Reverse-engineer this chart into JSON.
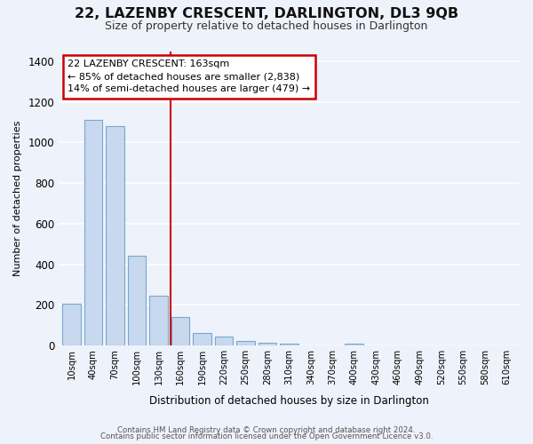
{
  "title": "22, LAZENBY CRESCENT, DARLINGTON, DL3 9QB",
  "subtitle": "Size of property relative to detached houses in Darlington",
  "xlabel": "Distribution of detached houses by size in Darlington",
  "ylabel": "Number of detached properties",
  "bar_color": "#c8d8ee",
  "bar_edge_color": "#7aa8cc",
  "bin_labels": [
    "10sqm",
    "40sqm",
    "70sqm",
    "100sqm",
    "130sqm",
    "160sqm",
    "190sqm",
    "220sqm",
    "250sqm",
    "280sqm",
    "310sqm",
    "340sqm",
    "370sqm",
    "400sqm",
    "430sqm",
    "460sqm",
    "490sqm",
    "520sqm",
    "550sqm",
    "580sqm",
    "610sqm"
  ],
  "bar_heights": [
    205,
    1110,
    1080,
    440,
    245,
    140,
    60,
    45,
    22,
    15,
    10,
    0,
    0,
    10,
    0,
    0,
    0,
    0,
    0,
    0,
    0
  ],
  "ylim": [
    0,
    1450
  ],
  "yticks": [
    0,
    200,
    400,
    600,
    800,
    1000,
    1200,
    1400
  ],
  "property_line_label": "22 LAZENBY CRESCENT: 163sqm",
  "annotation_line1": "← 85% of detached houses are smaller (2,838)",
  "annotation_line2": "14% of semi-detached houses are larger (479) →",
  "footer1": "Contains HM Land Registry data © Crown copyright and database right 2024.",
  "footer2": "Contains public sector information licensed under the Open Government Licence v3.0.",
  "background_color": "#eef2fa",
  "grid_color": "#ffffff",
  "annotation_box_color": "#ffffff",
  "annotation_box_edge": "#cc0000",
  "property_line_color": "#cc0000"
}
